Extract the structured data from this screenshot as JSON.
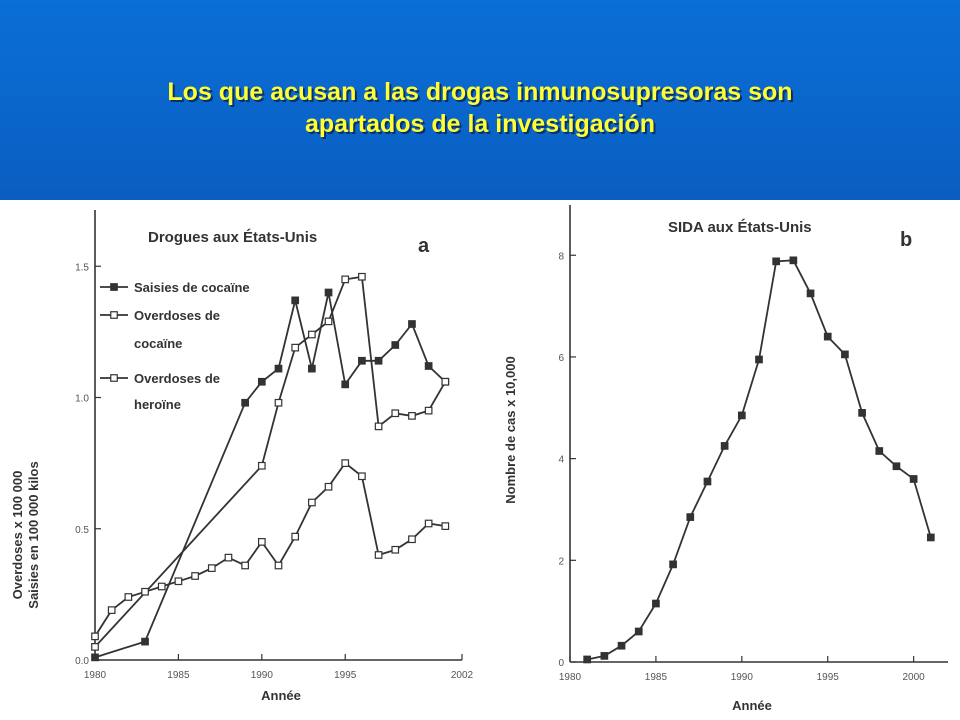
{
  "slide": {
    "title": "Los que acusan a las drogas inmunosupresoras son\napartados de la investigación",
    "colors": {
      "header_bg": "#0a66cc",
      "title": "#ffff33",
      "ink": "#333333"
    }
  },
  "chart_data": [
    {
      "type": "line",
      "title": "Drogues aux États-Unis",
      "panel": "a",
      "xlabel": "Année",
      "ylabel": [
        "Overdoses x 100 000",
        "Saisies en 100 000 kilos"
      ],
      "xlim": [
        1980,
        2002
      ],
      "ylim": [
        0,
        1.6
      ],
      "xticks": [
        1980,
        1985,
        1990,
        1995,
        2002
      ],
      "xtick_labels": [
        "1980",
        "1985",
        "1990",
        "1995",
        "2002"
      ],
      "yticks": [
        0,
        0.5,
        1.0,
        1.5
      ],
      "ytick_labels": [
        "0.0",
        "0.5",
        "1.0",
        "1.5"
      ],
      "legend_position": "top-left",
      "series": [
        {
          "name": "Saisies de cocaïne",
          "marker": "filled-square",
          "x": [
            1980,
            1983,
            1989,
            1990,
            1991,
            1992,
            1993,
            1994,
            1995,
            1996,
            1997,
            1998,
            1999,
            2000,
            2001
          ],
          "y": [
            0.01,
            0.07,
            0.98,
            1.06,
            1.11,
            1.37,
            1.11,
            1.4,
            1.05,
            1.14,
            1.14,
            1.2,
            1.28,
            1.12,
            1.06
          ]
        },
        {
          "name": "Overdoses de\ncocaïne",
          "marker": "open-square",
          "x": [
            1980,
            1990,
            1991,
            1992,
            1993,
            1994,
            1995,
            1996,
            1997,
            1998,
            1999,
            2000,
            2001
          ],
          "y": [
            0.05,
            0.74,
            0.98,
            1.19,
            1.24,
            1.29,
            1.45,
            1.46,
            0.89,
            0.94,
            0.93,
            0.95,
            1.06
          ]
        },
        {
          "name": "Overdoses de\nheroïne",
          "marker": "open-square",
          "x": [
            1980,
            1981,
            1982,
            1983,
            1984,
            1985,
            1986,
            1987,
            1988,
            1989,
            1990,
            1991,
            1992,
            1993,
            1994,
            1995,
            1996,
            1997,
            1998,
            1999,
            2000,
            2001
          ],
          "y": [
            0.09,
            0.19,
            0.24,
            0.26,
            0.28,
            0.3,
            0.32,
            0.35,
            0.39,
            0.36,
            0.45,
            0.36,
            0.47,
            0.6,
            0.66,
            0.75,
            0.7,
            0.4,
            0.42,
            0.46,
            0.52,
            0.51
          ]
        }
      ]
    },
    {
      "type": "line",
      "title": "SIDA aux États-Unis",
      "panel": "b",
      "xlabel": "Année",
      "ylabel": "Nombre de cas  x 10,000",
      "xlim": [
        1980,
        2002
      ],
      "ylim": [
        0,
        8.3
      ],
      "xticks": [
        1980,
        1985,
        1990,
        1995,
        2000
      ],
      "xtick_labels": [
        "1980",
        "1985",
        "1990",
        "1995",
        "2000"
      ],
      "yticks": [
        0,
        2,
        4,
        6,
        8
      ],
      "ytick_labels": [
        "0",
        "2",
        "4",
        "6",
        "8"
      ],
      "series": [
        {
          "marker": "filled-square",
          "x": [
            1981,
            1982,
            1983,
            1984,
            1985,
            1986,
            1987,
            1988,
            1989,
            1990,
            1991,
            1992,
            1993,
            1994,
            1995,
            1996,
            1997,
            1998,
            1999,
            2000,
            2001
          ],
          "y": [
            0.05,
            0.12,
            0.32,
            0.6,
            1.15,
            1.92,
            2.85,
            3.55,
            4.25,
            4.85,
            5.95,
            7.88,
            7.9,
            7.25,
            6.4,
            6.05,
            4.9,
            4.15,
            3.85,
            3.6,
            2.45
          ]
        }
      ]
    }
  ]
}
